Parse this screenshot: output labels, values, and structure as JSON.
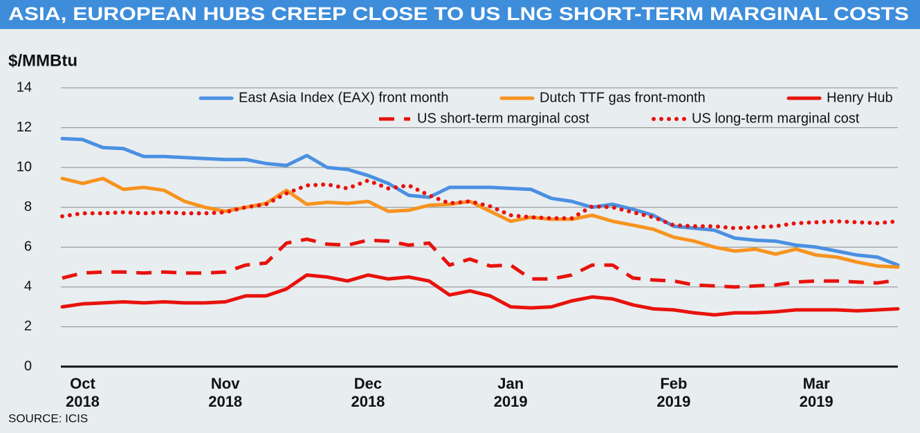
{
  "chart_data": {
    "type": "line",
    "title": "ASIA, EUROPEAN HUBS CREEP CLOSE TO US LNG SHORT-TERM MARGINAL COSTS",
    "y_label": "$/MMBtu",
    "source": "SOURCE: ICIS",
    "categories": [
      null,
      "Oct\n2018",
      null,
      null,
      null,
      null,
      null,
      null,
      "Nov\n2018",
      null,
      null,
      null,
      null,
      null,
      null,
      "Dec\n2018",
      null,
      null,
      null,
      null,
      null,
      null,
      "Jan\n2019",
      null,
      null,
      null,
      null,
      null,
      null,
      null,
      "Feb\n2019",
      null,
      null,
      null,
      null,
      null,
      null,
      "Mar\n2019",
      null,
      null,
      null,
      null
    ],
    "ylim": [
      0,
      14
    ],
    "yticks": [
      0,
      2,
      4,
      6,
      8,
      10,
      12,
      14
    ],
    "grid": true,
    "series": [
      {
        "name": "East Asia Index (EAX) front month",
        "color": "#4a90e2",
        "line_style": "solid",
        "values": [
          11.45,
          11.4,
          11.0,
          10.95,
          10.55,
          10.55,
          10.5,
          10.45,
          10.4,
          10.4,
          10.2,
          10.1,
          10.6,
          10.0,
          9.9,
          9.6,
          9.2,
          8.6,
          8.5,
          9.0,
          9.0,
          9.0,
          8.95,
          8.9,
          8.45,
          8.3,
          8.0,
          8.15,
          7.9,
          7.6,
          7.05,
          6.95,
          6.85,
          6.45,
          6.35,
          6.3,
          6.1,
          6.0,
          5.8,
          5.6,
          5.5,
          5.1
        ]
      },
      {
        "name": "Dutch TTF gas front-month",
        "color": "#f7931e",
        "line_style": "solid",
        "values": [
          9.45,
          9.2,
          9.45,
          8.9,
          9.0,
          8.85,
          8.3,
          8.0,
          7.8,
          8.0,
          8.2,
          8.85,
          8.15,
          8.25,
          8.2,
          8.3,
          7.8,
          7.85,
          8.1,
          8.15,
          8.3,
          7.8,
          7.3,
          7.5,
          7.4,
          7.4,
          7.6,
          7.3,
          7.1,
          6.9,
          6.5,
          6.3,
          6.0,
          5.8,
          5.9,
          5.65,
          5.9,
          5.6,
          5.5,
          5.25,
          5.05,
          5.0
        ]
      },
      {
        "name": "Henry Hub",
        "color": "#e8120c",
        "line_style": "solid",
        "values": [
          3.0,
          3.15,
          3.2,
          3.25,
          3.2,
          3.25,
          3.2,
          3.2,
          3.25,
          3.55,
          3.55,
          3.9,
          4.6,
          4.5,
          4.3,
          4.6,
          4.4,
          4.5,
          4.3,
          3.6,
          3.8,
          3.55,
          3.0,
          2.95,
          3.0,
          3.3,
          3.5,
          3.4,
          3.1,
          2.9,
          2.85,
          2.7,
          2.6,
          2.7,
          2.7,
          2.75,
          2.85,
          2.85,
          2.85,
          2.8,
          2.85,
          2.9
        ]
      },
      {
        "name": "US short-term marginal cost",
        "color": "#e8120c",
        "line_style": "dashed",
        "values": [
          4.45,
          4.7,
          4.75,
          4.75,
          4.7,
          4.75,
          4.7,
          4.7,
          4.75,
          5.1,
          5.2,
          6.2,
          6.4,
          6.15,
          6.1,
          6.35,
          6.3,
          6.1,
          6.2,
          5.1,
          5.4,
          5.05,
          5.1,
          4.4,
          4.4,
          4.6,
          5.1,
          5.1,
          4.45,
          4.35,
          4.3,
          4.1,
          4.05,
          4.0,
          4.05,
          4.1,
          4.25,
          4.3,
          4.3,
          4.25,
          4.2,
          4.35
        ]
      },
      {
        "name": "US long-term marginal cost",
        "color": "#e8120c",
        "line_style": "dotted",
        "values": [
          7.55,
          7.7,
          7.7,
          7.75,
          7.7,
          7.75,
          7.7,
          7.7,
          7.75,
          8.0,
          8.15,
          8.7,
          9.1,
          9.15,
          8.95,
          9.35,
          8.95,
          9.1,
          8.6,
          8.2,
          8.3,
          8.05,
          7.6,
          7.5,
          7.45,
          7.45,
          8.05,
          8.0,
          7.75,
          7.5,
          7.1,
          7.05,
          7.05,
          6.95,
          7.0,
          7.05,
          7.2,
          7.25,
          7.3,
          7.25,
          7.2,
          7.3
        ]
      }
    ]
  }
}
